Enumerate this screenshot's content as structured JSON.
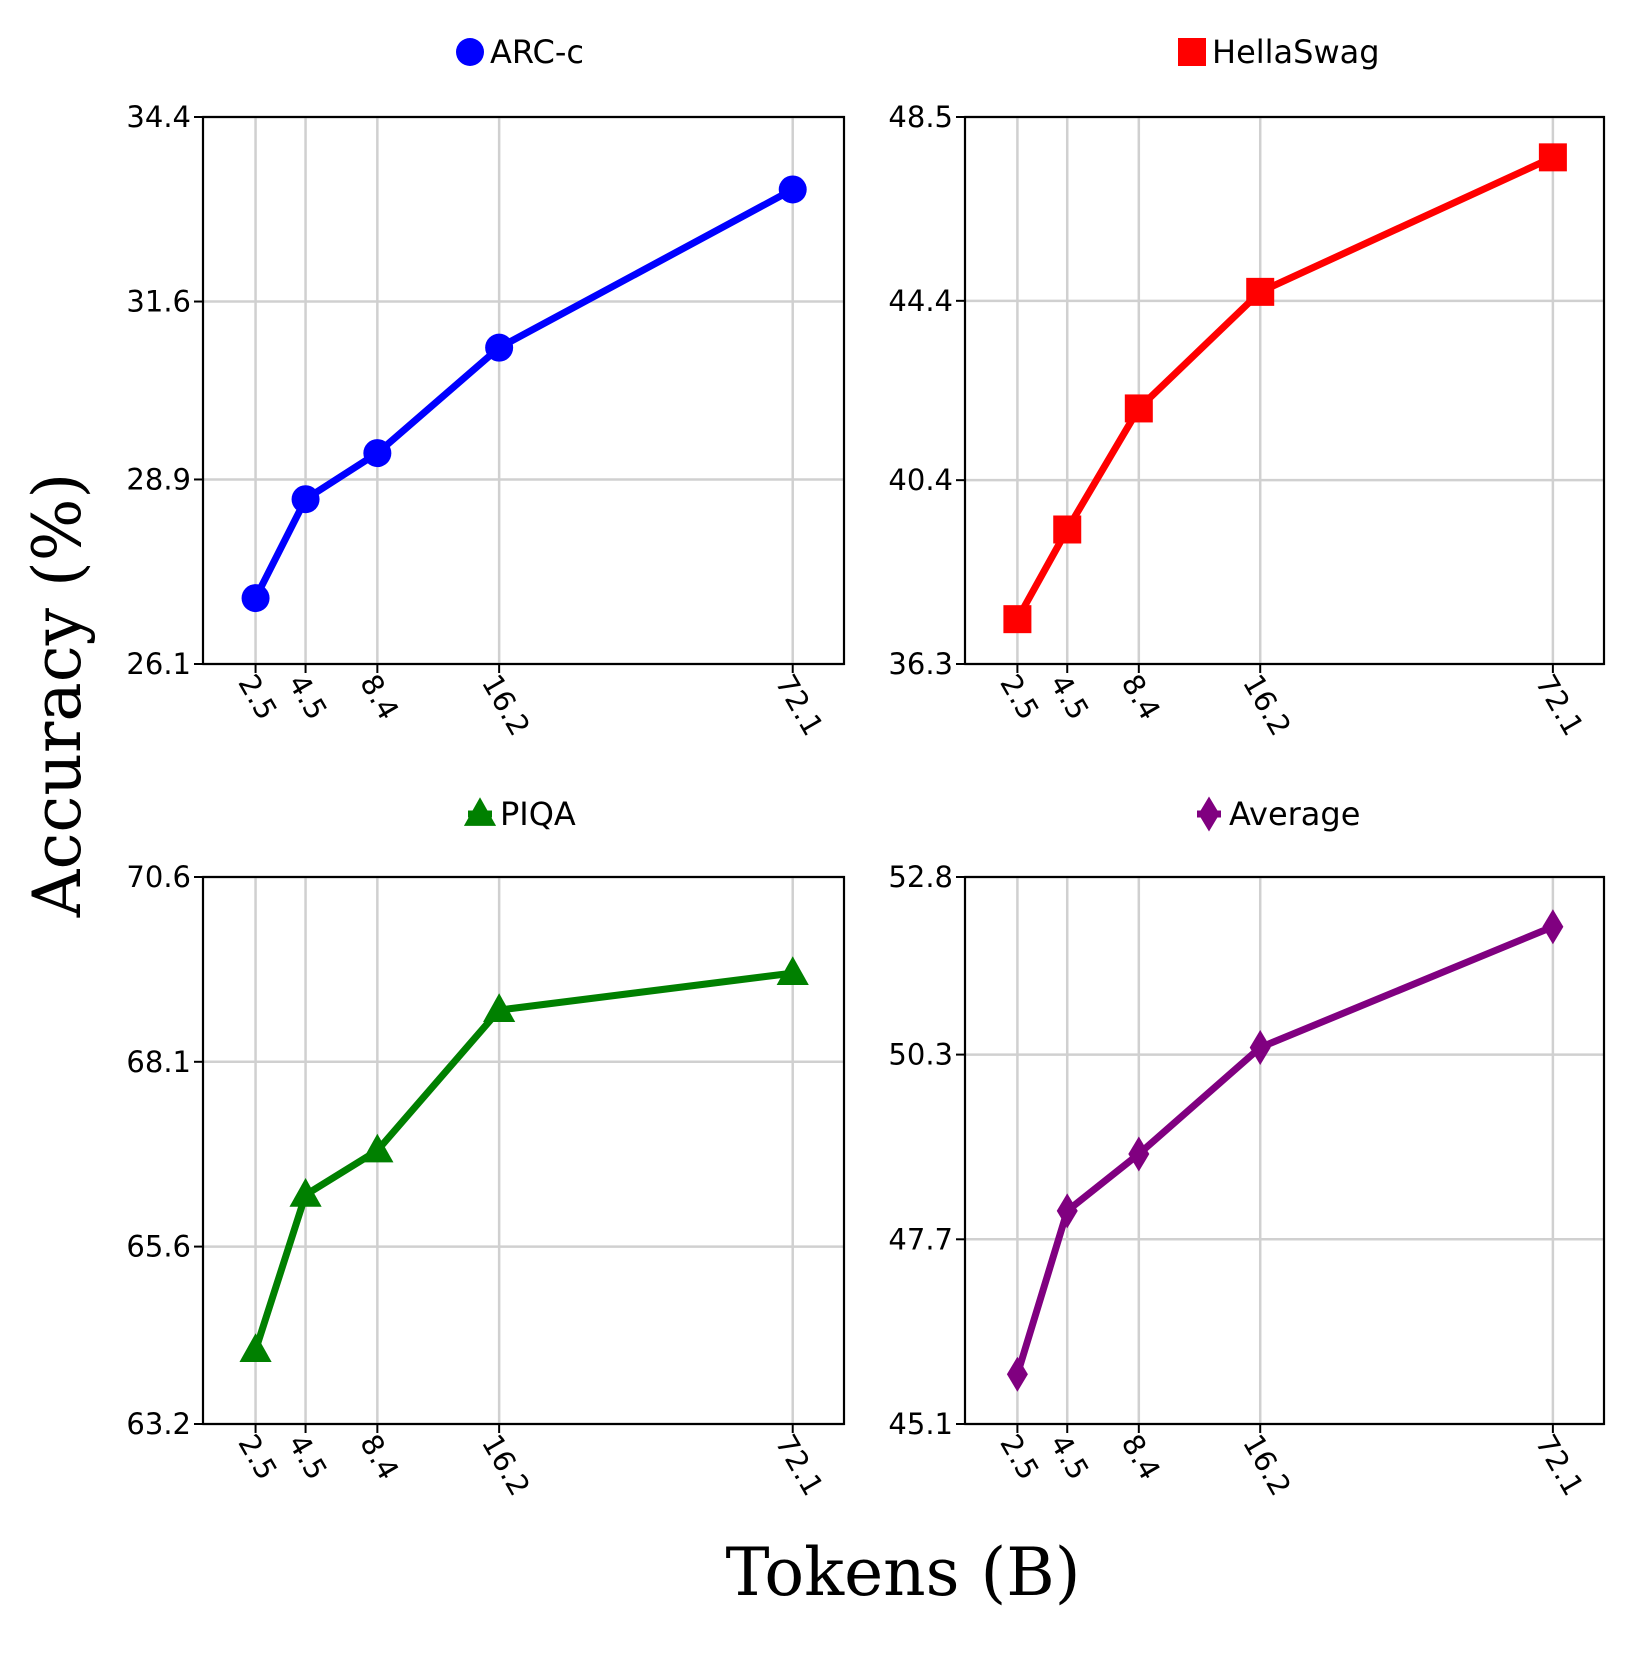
{
  "figure": {
    "xlabel": "Tokens (B)",
    "ylabel": "Accuracy (%)"
  },
  "chart_data": [
    {
      "type": "line",
      "series": [
        {
          "name": "ARC-c",
          "marker": "circle",
          "color": "#0000ff",
          "x": [
            "2.5",
            "4.5",
            "8.4",
            "16.2",
            "72.1"
          ],
          "values": [
            27.1,
            28.6,
            29.3,
            30.9,
            33.3
          ]
        }
      ],
      "yticks": [
        "26.1",
        "28.9",
        "31.6",
        "34.4"
      ],
      "ylim": [
        26.1,
        34.4
      ],
      "legend": "top-center",
      "grid": true
    },
    {
      "type": "line",
      "series": [
        {
          "name": "HellaSwag",
          "marker": "square",
          "color": "#ff0000",
          "x": [
            "2.5",
            "4.5",
            "8.4",
            "16.2",
            "72.1"
          ],
          "values": [
            37.3,
            39.3,
            42.0,
            44.6,
            47.6
          ]
        }
      ],
      "yticks": [
        "36.3",
        "40.4",
        "44.4",
        "48.5"
      ],
      "ylim": [
        36.3,
        48.5
      ],
      "legend": "top-center",
      "grid": true
    },
    {
      "type": "line",
      "series": [
        {
          "name": "PIQA",
          "marker": "triangle",
          "color": "#008000",
          "x": [
            "2.5",
            "4.5",
            "8.4",
            "16.2",
            "72.1"
          ],
          "values": [
            64.2,
            66.3,
            66.9,
            68.8,
            69.3
          ]
        }
      ],
      "yticks": [
        "63.2",
        "65.6",
        "68.1",
        "70.6"
      ],
      "ylim": [
        63.2,
        70.6
      ],
      "legend": "top-center",
      "grid": true
    },
    {
      "type": "line",
      "series": [
        {
          "name": "Average",
          "marker": "diamond",
          "color": "#800080",
          "x": [
            "2.5",
            "4.5",
            "8.4",
            "16.2",
            "72.1"
          ],
          "values": [
            45.8,
            48.1,
            48.9,
            50.4,
            52.1
          ]
        }
      ],
      "yticks": [
        "45.1",
        "47.7",
        "50.3",
        "52.8"
      ],
      "ylim": [
        45.1,
        52.8
      ],
      "legend": "top-center",
      "grid": true
    }
  ]
}
